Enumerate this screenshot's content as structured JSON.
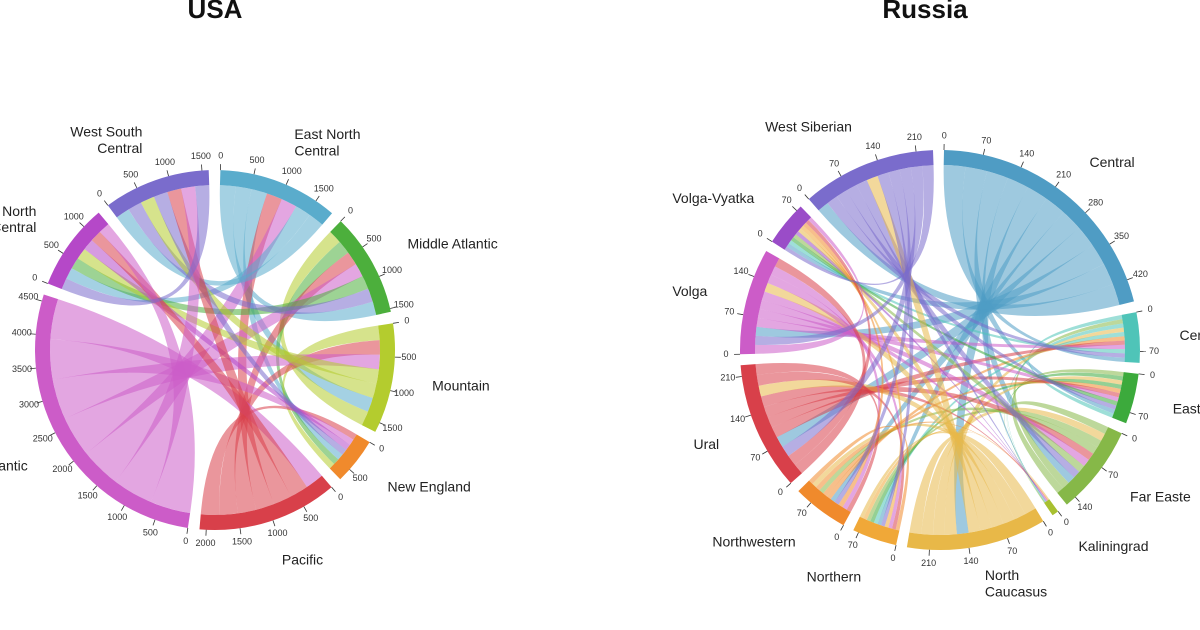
{
  "chart_data": [
    {
      "type": "chord",
      "title": "USA",
      "segments": [
        {
          "name": "East North Central",
          "lines": [
            "East North",
            "Central"
          ],
          "total": 1800,
          "ticks": [
            0,
            500,
            1000,
            1500
          ],
          "color": "#5aaccc"
        },
        {
          "name": "Middle Atlantic",
          "lines": [
            "Middle Atlantic"
          ],
          "total": 1550,
          "ticks": [
            0,
            500,
            1000,
            1500
          ],
          "color": "#4caf3c"
        },
        {
          "name": "Mountain",
          "lines": [
            "Mountain"
          ],
          "total": 1650,
          "ticks": [
            0,
            500,
            1000,
            1500
          ],
          "color": "#b4cc2e"
        },
        {
          "name": "New England",
          "lines": [
            "New England"
          ],
          "total": 700,
          "ticks": [
            0,
            500
          ],
          "color": "#f08a2c"
        },
        {
          "name": "Pacific",
          "lines": [
            "Pacific"
          ],
          "total": 2100,
          "ticks": [
            0,
            500,
            1000,
            1500,
            2000
          ],
          "color": "#d8404a"
        },
        {
          "name": "South Atlantic",
          "lines": [
            "South Atlantic"
          ],
          "total": 4600,
          "ticks": [
            0,
            500,
            1000,
            1500,
            2000,
            2500,
            3000,
            3500,
            4000,
            4500
          ],
          "color": "#cc5cc8"
        },
        {
          "name": "West North Central",
          "lines": [
            "West North",
            "Central"
          ],
          "total": 1300,
          "ticks": [
            0,
            500,
            1000
          ],
          "color": "#b548c8"
        },
        {
          "name": "West South Central",
          "lines": [
            "West South",
            "Central"
          ],
          "total": 1600,
          "ticks": [
            0,
            500,
            1000,
            1500
          ],
          "color": "#7a6ccc"
        }
      ]
    },
    {
      "type": "chord",
      "title": "Russia",
      "segments": [
        {
          "name": "Central",
          "lines": [
            "Central"
          ],
          "total": 460,
          "ticks": [
            0,
            70,
            140,
            210,
            280,
            350,
            420
          ],
          "color": "#4f9cc4"
        },
        {
          "name": "Central Black Earth",
          "lines": [
            "Centr"
          ],
          "total": 90,
          "ticks": [
            0,
            70
          ],
          "color": "#4fc4b8"
        },
        {
          "name": "East Siberian",
          "lines": [
            "East"
          ],
          "total": 90,
          "ticks": [
            0,
            70
          ],
          "color": "#3caa3c"
        },
        {
          "name": "Far Eastern",
          "lines": [
            "Far Easte"
          ],
          "total": 160,
          "ticks": [
            0,
            70,
            140
          ],
          "color": "#86b848"
        },
        {
          "name": "Kaliningrad",
          "lines": [
            "Kaliningrad"
          ],
          "total": 12,
          "ticks": [
            0
          ],
          "color": "#a8c030"
        },
        {
          "name": "North Caucasus",
          "lines": [
            "North",
            "Caucasus"
          ],
          "total": 250,
          "ticks": [
            0,
            70,
            140,
            210
          ],
          "color": "#e8b848"
        },
        {
          "name": "Northern",
          "lines": [
            "Northern"
          ],
          "total": 80,
          "ticks": [
            0,
            70
          ],
          "color": "#f0a838"
        },
        {
          "name": "Northwestern",
          "lines": [
            "Northwestern"
          ],
          "total": 100,
          "ticks": [
            0,
            70
          ],
          "color": "#f08a2c"
        },
        {
          "name": "Ural",
          "lines": [
            "Ural"
          ],
          "total": 230,
          "ticks": [
            0,
            70,
            140,
            210
          ],
          "color": "#d8404a"
        },
        {
          "name": "Volga",
          "lines": [
            "Volga"
          ],
          "total": 190,
          "ticks": [
            0,
            70,
            140
          ],
          "color": "#cc5cc8"
        },
        {
          "name": "Volga-Vyatka",
          "lines": [
            "Volga-Vyatka"
          ],
          "total": 80,
          "ticks": [
            0,
            70
          ],
          "color": "#9a4cc8"
        },
        {
          "name": "West Siberian",
          "lines": [
            "West Siberian"
          ],
          "total": 240,
          "ticks": [
            0,
            70,
            140,
            210
          ],
          "color": "#7a6ccc"
        }
      ]
    }
  ]
}
